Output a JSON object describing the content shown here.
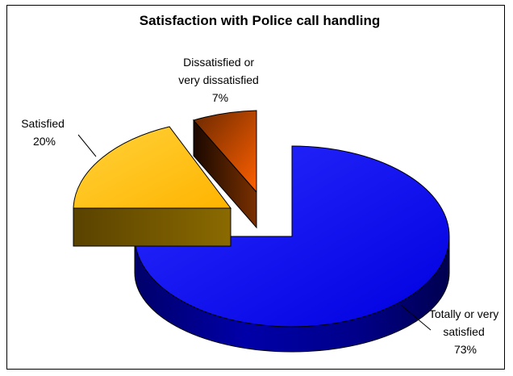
{
  "chart_data": {
    "type": "pie",
    "style": "3d-exploded",
    "title": "Satisfaction with Police call handling",
    "legend": "none",
    "slices": [
      {
        "label_lines": [
          "Totally or very",
          "satisfied"
        ],
        "value_label": "73%",
        "value": 73,
        "color": "#1010ff",
        "side_color": "#000088"
      },
      {
        "label_lines": [
          "Satisfied"
        ],
        "value_label": "20%",
        "value": 20,
        "color": "#ffc000",
        "side_color": "#7a5a00"
      },
      {
        "label_lines": [
          "Dissatisfied or",
          "very dissatisfied"
        ],
        "value_label": "7%",
        "value": 7,
        "color": "#ff5a00",
        "side_color": "#5a1e00"
      }
    ]
  }
}
